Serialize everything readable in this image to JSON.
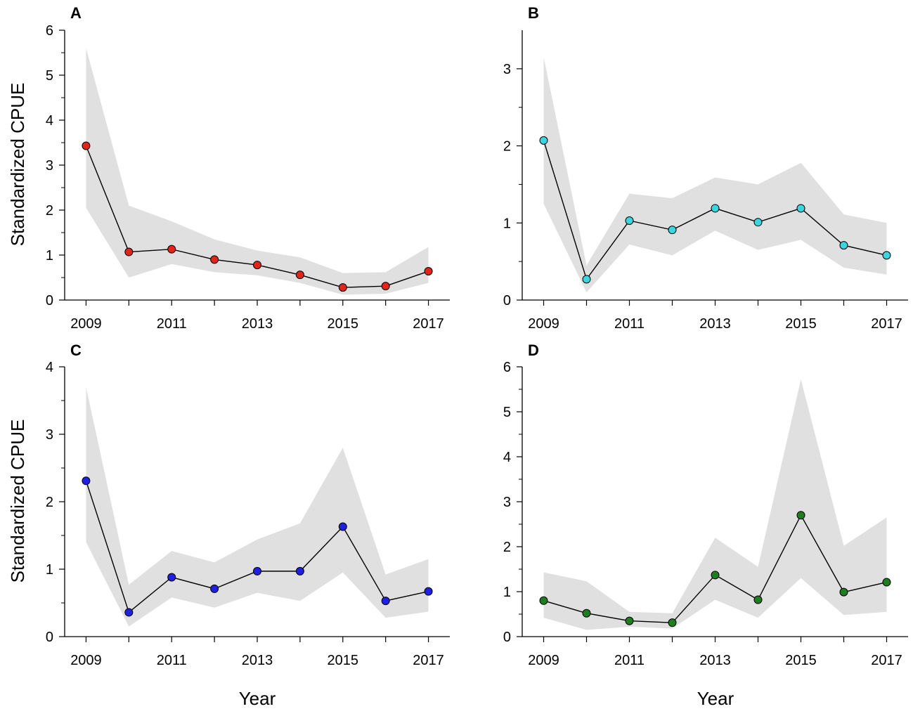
{
  "figure": {
    "ylabel": "Standardized CPUE",
    "xlabel": "Year"
  },
  "chart_data": [
    {
      "type": "line",
      "panel": "A",
      "title": "A",
      "xlabel": "Year",
      "ylabel": "Standardized CPUE",
      "x": [
        2009,
        2010,
        2011,
        2012,
        2013,
        2014,
        2015,
        2016,
        2017
      ],
      "x_tick_labels": [
        "2009",
        "2011",
        "2013",
        "2015",
        "2017"
      ],
      "y_tick_labels": [
        "0",
        "1",
        "2",
        "3",
        "4",
        "5",
        "6"
      ],
      "xlim": [
        2008.5,
        2017.5
      ],
      "ylim": [
        0,
        6
      ],
      "series": [
        {
          "name": "Standardized CPUE",
          "color": "#e0251b",
          "values": [
            3.43,
            1.07,
            1.13,
            0.9,
            0.78,
            0.56,
            0.28,
            0.31,
            0.64
          ],
          "lower": [
            2.05,
            0.5,
            0.8,
            0.62,
            0.55,
            0.38,
            0.12,
            0.14,
            0.38
          ],
          "upper": [
            5.6,
            2.1,
            1.75,
            1.35,
            1.1,
            0.95,
            0.6,
            0.62,
            1.18
          ]
        }
      ]
    },
    {
      "type": "line",
      "panel": "B",
      "title": "B",
      "xlabel": "Year",
      "ylabel": "Standardized CPUE",
      "x": [
        2009,
        2010,
        2011,
        2012,
        2013,
        2014,
        2015,
        2016,
        2017
      ],
      "x_tick_labels": [
        "2009",
        "2011",
        "2013",
        "2015",
        "2017"
      ],
      "y_tick_labels": [
        "0",
        "1",
        "2",
        "3"
      ],
      "xlim": [
        2008.5,
        2017.5
      ],
      "ylim": [
        0,
        3.5
      ],
      "series": [
        {
          "name": "Standardized CPUE",
          "color": "#39d6e0",
          "values": [
            2.07,
            0.27,
            1.03,
            0.91,
            1.19,
            1.01,
            1.19,
            0.71,
            0.58
          ],
          "lower": [
            1.25,
            0.1,
            0.72,
            0.58,
            0.9,
            0.65,
            0.78,
            0.42,
            0.33
          ],
          "upper": [
            3.15,
            0.45,
            1.38,
            1.32,
            1.59,
            1.5,
            1.78,
            1.11,
            1.0
          ]
        }
      ]
    },
    {
      "type": "line",
      "panel": "C",
      "title": "C",
      "xlabel": "Year",
      "ylabel": "Standardized CPUE",
      "x": [
        2009,
        2010,
        2011,
        2012,
        2013,
        2014,
        2015,
        2016,
        2017
      ],
      "x_tick_labels": [
        "2009",
        "2011",
        "2013",
        "2015",
        "2017"
      ],
      "y_tick_labels": [
        "0",
        "1",
        "2",
        "3",
        "4"
      ],
      "xlim": [
        2008.5,
        2017.5
      ],
      "ylim": [
        0,
        4
      ],
      "series": [
        {
          "name": "Standardized CPUE",
          "color": "#2020e0",
          "values": [
            2.31,
            0.36,
            0.88,
            0.71,
            0.97,
            0.97,
            1.63,
            0.53,
            0.67
          ],
          "lower": [
            1.4,
            0.15,
            0.58,
            0.43,
            0.65,
            0.53,
            0.95,
            0.28,
            0.37
          ],
          "upper": [
            3.7,
            0.77,
            1.27,
            1.1,
            1.44,
            1.68,
            2.8,
            0.92,
            1.15
          ]
        }
      ]
    },
    {
      "type": "line",
      "panel": "D",
      "title": "D",
      "xlabel": "Year",
      "ylabel": "Standardized CPUE",
      "x": [
        2009,
        2010,
        2011,
        2012,
        2013,
        2014,
        2015,
        2016,
        2017
      ],
      "x_tick_labels": [
        "2009",
        "2011",
        "2013",
        "2015",
        "2017"
      ],
      "y_tick_labels": [
        "0",
        "1",
        "2",
        "3",
        "4",
        "5",
        "6"
      ],
      "xlim": [
        2008.5,
        2017.5
      ],
      "ylim": [
        0,
        6
      ],
      "series": [
        {
          "name": "Standardized CPUE",
          "color": "#1e7d1e",
          "values": [
            0.8,
            0.52,
            0.35,
            0.31,
            1.37,
            0.82,
            2.7,
            0.99,
            1.21
          ],
          "lower": [
            0.42,
            0.15,
            0.22,
            0.18,
            0.82,
            0.42,
            1.3,
            0.48,
            0.55
          ],
          "upper": [
            1.43,
            1.23,
            0.55,
            0.52,
            2.2,
            1.55,
            5.72,
            2.02,
            2.65
          ]
        }
      ]
    }
  ]
}
